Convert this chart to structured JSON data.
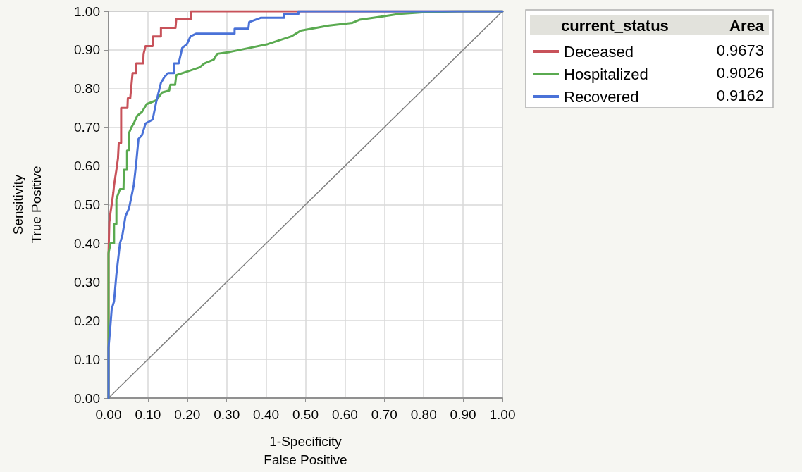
{
  "chart_data": {
    "type": "line",
    "xlabel": "1-Specificity\nFalse Positive",
    "ylabel": "Sensitivity\nTrue Positive",
    "legend_title": "current_status",
    "legend": "top right",
    "grid": true,
    "marker": "none",
    "xlim": [
      0,
      1
    ],
    "ylim": [
      0,
      1
    ],
    "xticks": [
      {
        "value": 0,
        "label": "0.00"
      },
      {
        "value": 0.1,
        "label": "0.10"
      },
      {
        "value": 0.2,
        "label": "0.20"
      },
      {
        "value": 0.3,
        "label": "0.30"
      },
      {
        "value": 0.4,
        "label": "0.40"
      },
      {
        "value": 0.5,
        "label": "0.50"
      },
      {
        "value": 0.6,
        "label": "0.60"
      },
      {
        "value": 0.7,
        "label": "0.70"
      },
      {
        "value": 0.8,
        "label": "0.80"
      },
      {
        "value": 0.9,
        "label": "0.90"
      },
      {
        "value": 1,
        "label": "1.00"
      }
    ],
    "yticks": [
      {
        "value": 0,
        "label": "0.00"
      },
      {
        "value": 0.1,
        "label": "0.10"
      },
      {
        "value": 0.2,
        "label": "0.20"
      },
      {
        "value": 0.3,
        "label": "0.30"
      },
      {
        "value": 0.4,
        "label": "0.40"
      },
      {
        "value": 0.5,
        "label": "0.50"
      },
      {
        "value": 0.6,
        "label": "0.60"
      },
      {
        "value": 0.7,
        "label": "0.70"
      },
      {
        "value": 0.8,
        "label": "0.80"
      },
      {
        "value": 0.9,
        "label": "0.90"
      },
      {
        "value": 1,
        "label": "1.00"
      }
    ],
    "annotations": [
      "Area",
      "0.9673",
      "0.9026",
      "0.9162"
    ],
    "series": [
      {
        "color": "#808080",
        "x": [
          0,
          1
        ],
        "values": [
          0,
          1
        ]
      },
      {
        "name": "Deceased",
        "color": "#c8525a",
        "x": [
          0,
          0,
          0.002,
          0.005,
          0.008,
          0.012,
          0.014,
          0.017,
          0.02,
          0.024,
          0.026,
          0.032,
          0.032,
          0.048,
          0.049,
          0.055,
          0.061,
          0.07,
          0.07,
          0.088,
          0.089,
          0.094,
          0.112,
          0.113,
          0.133,
          0.133,
          0.17,
          0.172,
          0.209,
          0.209,
          1
        ],
        "values": [
          0,
          0.37,
          0.455,
          0.48,
          0.5,
          0.53,
          0.55,
          0.57,
          0.59,
          0.62,
          0.66,
          0.66,
          0.75,
          0.75,
          0.775,
          0.775,
          0.84,
          0.84,
          0.865,
          0.865,
          0.89,
          0.91,
          0.91,
          0.935,
          0.935,
          0.957,
          0.957,
          0.98,
          0.98,
          1,
          1
        ]
      },
      {
        "name": "Hospitalized",
        "color": "#5aaa50",
        "x": [
          0,
          0,
          0.005,
          0.014,
          0.014,
          0.02,
          0.02,
          0.029,
          0.038,
          0.039,
          0.047,
          0.047,
          0.052,
          0.052,
          0.058,
          0.064,
          0.073,
          0.085,
          0.097,
          0.121,
          0.136,
          0.154,
          0.157,
          0.169,
          0.172,
          0.202,
          0.231,
          0.243,
          0.267,
          0.276,
          0.309,
          0.357,
          0.404,
          0.464,
          0.488,
          0.56,
          0.619,
          0.637,
          0.691,
          0.738,
          0.81,
          0.887,
          1
        ],
        "values": [
          0,
          0.375,
          0.4,
          0.4,
          0.45,
          0.45,
          0.515,
          0.54,
          0.54,
          0.59,
          0.59,
          0.64,
          0.64,
          0.685,
          0.7,
          0.71,
          0.73,
          0.74,
          0.76,
          0.77,
          0.79,
          0.795,
          0.81,
          0.81,
          0.835,
          0.845,
          0.855,
          0.865,
          0.875,
          0.89,
          0.895,
          0.905,
          0.915,
          0.935,
          0.95,
          0.963,
          0.97,
          0.978,
          0.986,
          0.993,
          0.998,
          1,
          1
        ]
      },
      {
        "name": "Recovered",
        "color": "#4a72d8",
        "x": [
          0,
          0,
          0.005,
          0.008,
          0.014,
          0.02,
          0.029,
          0.035,
          0.043,
          0.052,
          0.058,
          0.064,
          0.07,
          0.076,
          0.085,
          0.094,
          0.112,
          0.121,
          0.133,
          0.142,
          0.151,
          0.166,
          0.166,
          0.178,
          0.187,
          0.199,
          0.208,
          0.222,
          0.32,
          0.32,
          0.355,
          0.357,
          0.386,
          0.446,
          0.446,
          0.482,
          0.482,
          1
        ],
        "values": [
          0,
          0.13,
          0.19,
          0.23,
          0.25,
          0.32,
          0.4,
          0.42,
          0.47,
          0.49,
          0.52,
          0.55,
          0.605,
          0.67,
          0.68,
          0.71,
          0.72,
          0.765,
          0.815,
          0.83,
          0.84,
          0.84,
          0.865,
          0.865,
          0.905,
          0.915,
          0.935,
          0.942,
          0.942,
          0.955,
          0.955,
          0.972,
          0.983,
          0.983,
          0.993,
          0.993,
          1,
          1
        ]
      }
    ]
  }
}
